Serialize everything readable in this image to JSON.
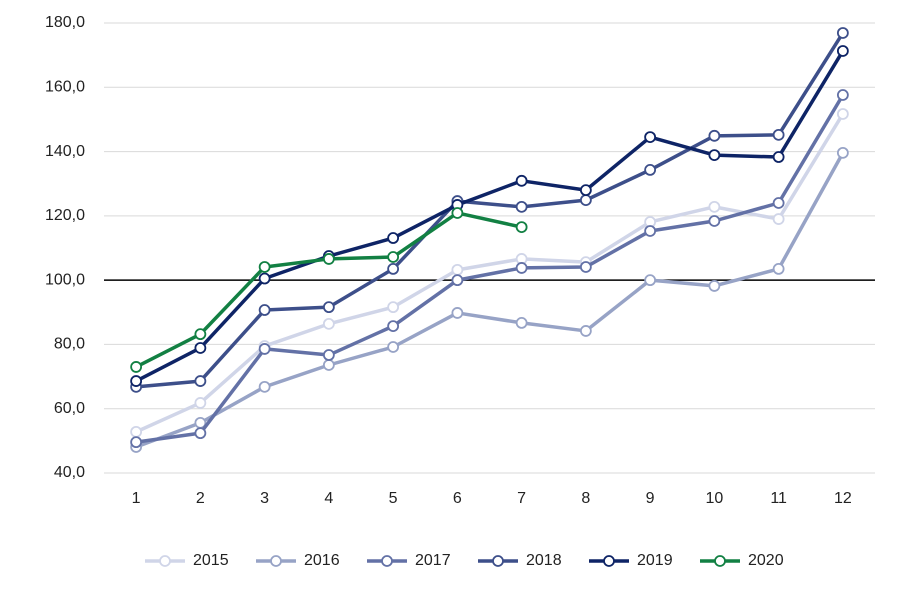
{
  "chart_data": {
    "type": "line",
    "categories": [
      "1",
      "2",
      "3",
      "4",
      "5",
      "6",
      "7",
      "8",
      "9",
      "10",
      "11",
      "12"
    ],
    "series": [
      {
        "name": "2015",
        "color": "#d0d5e8",
        "values": [
          52.8,
          61.8,
          79.5,
          86.4,
          91.6,
          103.2,
          106.6,
          105.6,
          118.1,
          122.8,
          119.0,
          151.7
        ]
      },
      {
        "name": "2016",
        "color": "#97a3c6",
        "values": [
          48.1,
          55.6,
          66.8,
          73.6,
          79.2,
          89.8,
          86.7,
          84.2,
          100.0,
          98.2,
          103.5,
          139.6
        ]
      },
      {
        "name": "2017",
        "color": "#6371a6",
        "values": [
          49.6,
          52.4,
          78.6,
          76.7,
          85.7,
          100.0,
          103.8,
          104.1,
          115.3,
          118.4,
          124.0,
          157.6
        ]
      },
      {
        "name": "2018",
        "color": "#3d4f8a",
        "values": [
          66.8,
          68.6,
          90.7,
          91.6,
          103.5,
          124.6,
          122.8,
          124.9,
          134.3,
          144.9,
          145.2,
          176.9
        ]
      },
      {
        "name": "2019",
        "color": "#0e2466",
        "values": [
          68.6,
          78.9,
          100.5,
          107.5,
          113.1,
          123.4,
          130.9,
          128.0,
          144.5,
          138.9,
          138.3,
          171.3
        ]
      },
      {
        "name": "2020",
        "color": "#128043",
        "values": [
          73.0,
          83.2,
          104.1,
          106.6,
          107.2,
          120.9,
          116.5,
          null,
          null,
          null,
          null,
          null
        ]
      }
    ],
    "ylim": [
      40,
      180
    ],
    "yticks": [
      {
        "value": 40,
        "label": "40,0"
      },
      {
        "value": 60,
        "label": "60,0"
      },
      {
        "value": 80,
        "label": "80,0"
      },
      {
        "value": 100,
        "label": "100,0"
      },
      {
        "value": 120,
        "label": "120,0"
      },
      {
        "value": 140,
        "label": "140,0"
      },
      {
        "value": 160,
        "label": "160,0"
      },
      {
        "value": 180,
        "label": "180,0"
      }
    ],
    "reference_line": 100,
    "grid": true,
    "legend": "bottom"
  }
}
